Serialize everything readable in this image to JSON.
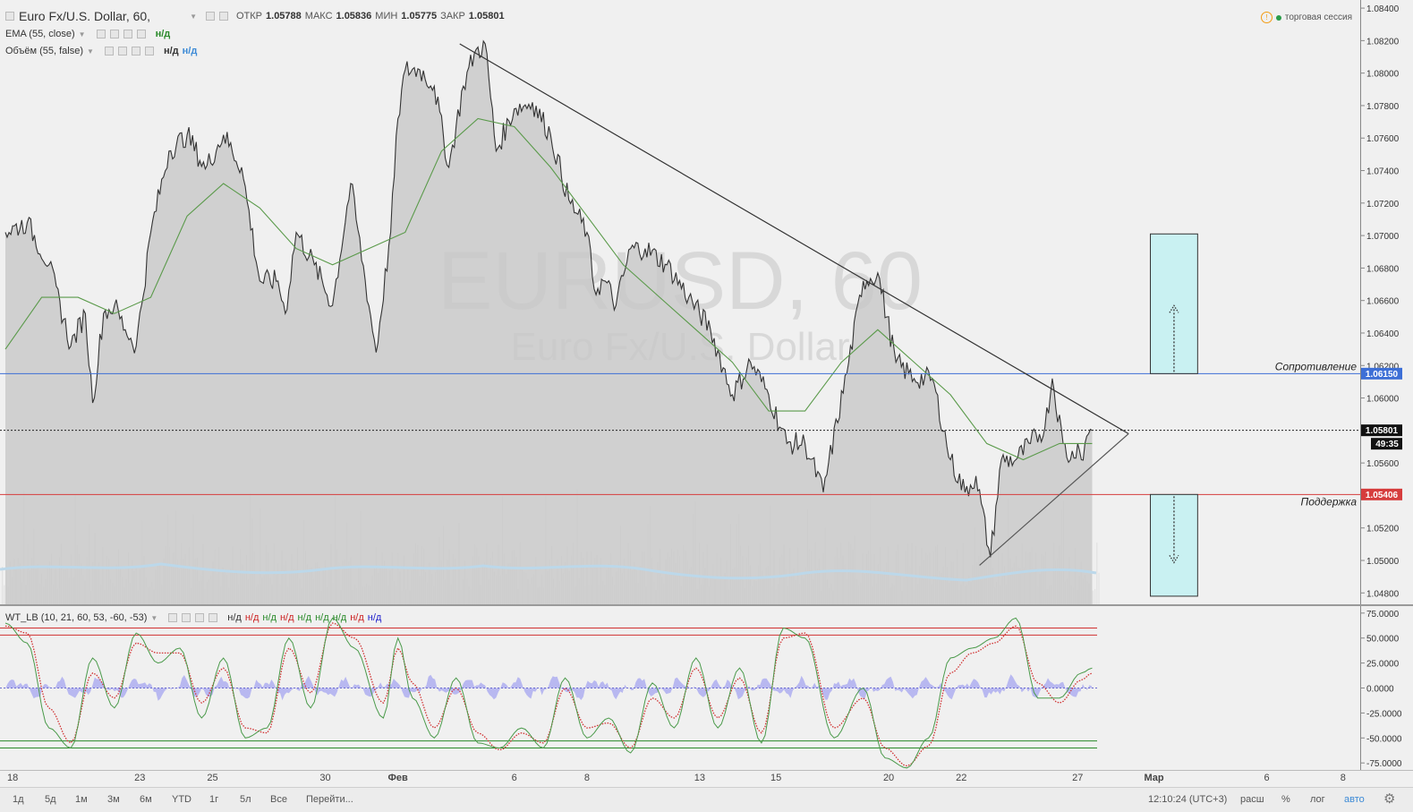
{
  "main": {
    "symbol_title": "Euro Fx/U.S. Dollar, 60,",
    "ohlc": {
      "open_label": "ОТКР",
      "open": "1.05788",
      "high_label": "МАКС",
      "high": "1.05836",
      "low_label": "МИН",
      "low": "1.05775",
      "close_label": "ЗАКР",
      "close": "1.05801"
    },
    "ema_label": "EMA (55, close)",
    "ema_value": "н/д",
    "volume_label": "Объём (55, false)",
    "volume_value_1": "н/д",
    "volume_value_2": "н/д",
    "watermark_big": "EURUSD, 60",
    "watermark_small": "Euro Fx/U.S. Dollar",
    "session_text": "торговая сессия",
    "resistance_label": "Сопротивление",
    "support_label": "Поддержка",
    "resistance_price": "1.06150",
    "support_price": "1.05406",
    "last_price": "1.05801",
    "countdown": "49:35"
  },
  "osc": {
    "label": "WT_LB (10, 21, 60, 53, -60, -53)",
    "values": [
      "н/д",
      "н/д",
      "н/д",
      "н/д",
      "н/д",
      "н/д",
      "н/д",
      "н/д",
      "н/д"
    ],
    "value_colors": [
      "#333333",
      "#cc2222",
      "#2a8a2a",
      "#cc2222",
      "#2a8a2a",
      "#2a8a2a",
      "#2a8a2a",
      "#cc2222",
      "#2222cc"
    ]
  },
  "bottom": {
    "periods": [
      "1д",
      "5д",
      "1м",
      "3м",
      "6м",
      "YTD",
      "1г",
      "5л",
      "Все"
    ],
    "goto": "Перейти...",
    "time": "12:10:24 (UTC+3)",
    "ext": "расш",
    "pct": "%",
    "log": "лог",
    "auto": "авто"
  },
  "chart_data": [
    {
      "type": "line",
      "name": "price",
      "x_tick_labels": [
        "18",
        "23",
        "25",
        "30",
        "Фев",
        "6",
        "8",
        "13",
        "15",
        "20",
        "22",
        "27",
        "Мар",
        "6",
        "8"
      ],
      "y_tick_labels": [
        "1.08400",
        "1.08200",
        "1.08000",
        "1.07800",
        "1.07600",
        "1.07400",
        "1.07200",
        "1.07000",
        "1.06800",
        "1.06600",
        "1.06400",
        "1.06200",
        "1.06000",
        "1.05800",
        "1.05600",
        "1.05400",
        "1.05200",
        "1.05000",
        "1.04800"
      ],
      "ylim": [
        1.0473,
        1.0845
      ],
      "x_index_range": [
        0,
        300
      ],
      "series": [
        {
          "name": "EURUSD",
          "color": "#333333",
          "x": [
            0,
            6,
            12,
            18,
            22,
            24,
            27,
            30,
            33,
            36,
            40,
            45,
            50,
            55,
            60,
            65,
            70,
            75,
            77,
            80,
            85,
            90,
            95,
            102,
            106,
            108,
            110,
            114,
            118,
            122,
            126,
            129,
            132,
            135,
            140,
            145,
            150,
            155,
            160,
            162,
            165,
            168,
            172,
            176,
            182,
            188,
            194,
            200,
            205,
            210,
            215,
            220,
            225,
            232,
            236,
            240,
            245,
            250,
            255,
            260,
            264,
            267,
            271,
            274,
            278,
            282,
            286,
            288,
            291,
            293,
            295,
            296,
            297,
            298,
            299
          ],
          "y": [
            1.0702,
            1.0708,
            1.0682,
            1.0632,
            1.0652,
            1.0597,
            1.0652,
            1.0657,
            1.0642,
            1.0632,
            1.0702,
            1.0752,
            1.0762,
            1.0741,
            1.0762,
            1.0742,
            1.0672,
            1.0672,
            1.0652,
            1.0702,
            1.0682,
            1.0657,
            1.0732,
            1.0628,
            1.0702,
            1.0772,
            1.0802,
            1.0802,
            1.0792,
            1.0742,
            1.0792,
            1.0812,
            1.0818,
            1.0752,
            1.0778,
            1.0782,
            1.0762,
            1.0722,
            1.0702,
            1.0667,
            1.0672,
            1.0657,
            1.0692,
            1.0692,
            1.0682,
            1.0662,
            1.0642,
            1.0602,
            1.0622,
            1.0602,
            1.0572,
            1.0572,
            1.0542,
            1.0622,
            1.0672,
            1.0677,
            1.0622,
            1.0612,
            1.0612,
            1.0562,
            1.0542,
            1.0552,
            1.0502,
            1.0562,
            1.0562,
            1.0572,
            1.0582,
            1.0612,
            1.0572,
            1.0562,
            1.0572,
            1.0562,
            1.0572,
            1.0578,
            1.058
          ]
        },
        {
          "name": "EMA (55, close)",
          "color": "#5a9a4a",
          "x": [
            0,
            10,
            20,
            30,
            40,
            50,
            60,
            70,
            80,
            90,
            100,
            110,
            120,
            130,
            140,
            150,
            160,
            170,
            180,
            190,
            200,
            210,
            220,
            230,
            240,
            250,
            260,
            270,
            280,
            290,
            299
          ],
          "y": [
            1.063,
            1.0662,
            1.0662,
            1.0652,
            1.0662,
            1.0712,
            1.0732,
            1.0717,
            1.0692,
            1.0682,
            1.0692,
            1.0702,
            1.0752,
            1.0772,
            1.0767,
            1.0742,
            1.0712,
            1.0682,
            1.0662,
            1.0642,
            1.0622,
            1.0592,
            1.0592,
            1.0622,
            1.0642,
            1.0622,
            1.0602,
            1.0572,
            1.0562,
            1.0572,
            1.0572
          ]
        }
      ],
      "annotations": {
        "resistance": 1.0615,
        "support": 1.05406,
        "last_price": 1.05801,
        "trendline_upper": [
          [
            125,
            1.0818
          ],
          [
            309,
            1.0578
          ]
        ],
        "trendline_lower": [
          [
            268,
            1.0497
          ],
          [
            309,
            1.0578
          ]
        ],
        "target_boxes": [
          {
            "x": [
              315,
              328
            ],
            "y": [
              1.0615,
              1.0701
            ]
          },
          {
            "x": [
              315,
              328
            ],
            "y": [
              1.0478,
              1.05406
            ]
          }
        ]
      }
    },
    {
      "type": "line",
      "name": "WT_LB oscillator",
      "y_tick_labels": [
        "75.0000",
        "50.0000",
        "25.0000",
        "0.0000",
        "-25.0000",
        "-50.0000",
        "-75.0000"
      ],
      "ylim": [
        -82,
        82
      ],
      "levels": [
        60,
        53,
        -53,
        -60
      ],
      "series": [
        {
          "name": "wt1",
          "color": "#2a8a2a",
          "x": [
            0,
            6,
            12,
            18,
            24,
            30,
            36,
            42,
            48,
            54,
            60,
            66,
            72,
            78,
            84,
            90,
            96,
            104,
            108,
            112,
            118,
            124,
            130,
            136,
            142,
            148,
            154,
            160,
            166,
            172,
            178,
            184,
            190,
            196,
            202,
            208,
            214,
            220,
            228,
            236,
            242,
            248,
            254,
            260,
            266,
            272,
            278,
            284,
            290,
            296,
            299
          ],
          "y": [
            65,
            45,
            -40,
            -60,
            30,
            -20,
            55,
            25,
            40,
            -30,
            30,
            -50,
            -40,
            50,
            -20,
            70,
            40,
            -30,
            50,
            -10,
            -50,
            10,
            -55,
            -60,
            -40,
            -60,
            10,
            -50,
            -30,
            -65,
            5,
            -40,
            30,
            -40,
            20,
            -55,
            60,
            50,
            -50,
            0,
            -70,
            -80,
            -50,
            30,
            40,
            50,
            70,
            -10,
            -10,
            15,
            20
          ]
        },
        {
          "name": "wt2",
          "color": "#d03030",
          "x": [
            0,
            6,
            12,
            18,
            24,
            30,
            36,
            42,
            48,
            54,
            60,
            66,
            72,
            78,
            84,
            90,
            96,
            104,
            108,
            112,
            118,
            124,
            130,
            136,
            142,
            148,
            154,
            160,
            166,
            172,
            178,
            184,
            190,
            196,
            202,
            208,
            214,
            220,
            228,
            236,
            242,
            248,
            254,
            260,
            266,
            272,
            278,
            284,
            290,
            296,
            299
          ],
          "y": [
            62,
            55,
            -20,
            -55,
            15,
            -10,
            45,
            35,
            35,
            -15,
            20,
            -40,
            -45,
            40,
            -5,
            65,
            50,
            -15,
            40,
            5,
            -40,
            0,
            -45,
            -62,
            -45,
            -55,
            0,
            -40,
            -35,
            -60,
            -10,
            -30,
            20,
            -30,
            10,
            -45,
            50,
            55,
            -40,
            -10,
            -60,
            -78,
            -58,
            15,
            35,
            45,
            62,
            5,
            -15,
            8,
            15
          ]
        }
      ]
    }
  ]
}
